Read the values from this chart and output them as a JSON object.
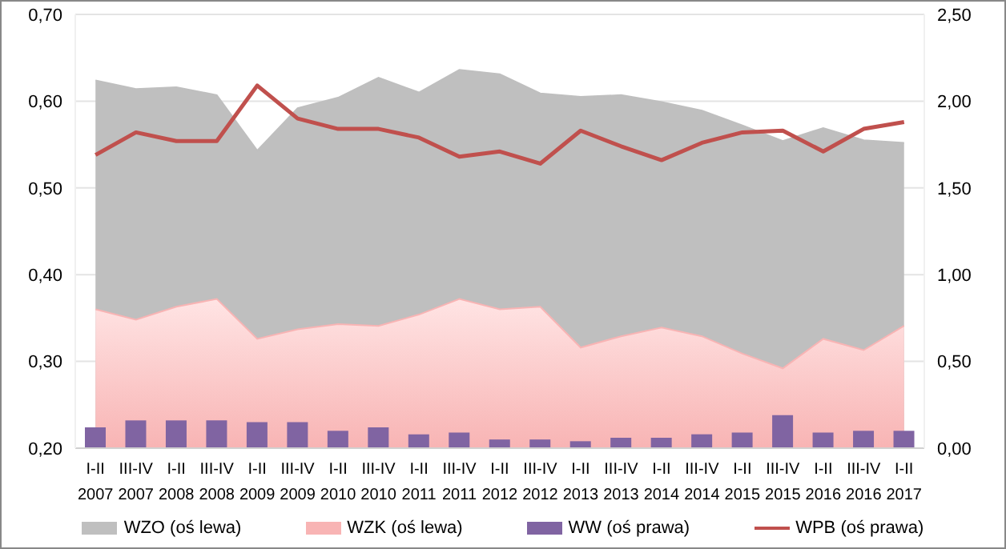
{
  "chart_data": {
    "type": "area",
    "categories": [
      "I-II 2007",
      "III-IV 2007",
      "I-II 2008",
      "III-IV 2008",
      "I-II 2009",
      "III-IV 2009",
      "I-II 2010",
      "III-IV 2010",
      "I-II 2011",
      "III-IV 2011",
      "I-II 2012",
      "III-IV 2012",
      "I-II 2013",
      "III-IV 2013",
      "I-II 2014",
      "III-IV 2014",
      "I-II 2015",
      "III-IV 2015",
      "I-II 2016",
      "III-IV 2016",
      "I-II 2017"
    ],
    "series": [
      {
        "name": "WZO (oś lewa)",
        "color": "#bfbfbf",
        "values": [
          0.624,
          0.614,
          0.616,
          0.607,
          0.543,
          0.592,
          0.604,
          0.627,
          0.61,
          0.636,
          0.631,
          0.609,
          0.605,
          0.607,
          0.599,
          0.589,
          0.572,
          0.554,
          0.569,
          0.555,
          0.552
        ]
      },
      {
        "name": "WZK (oś lewa)",
        "color": "#f8b4b4",
        "values": [
          0.36,
          0.348,
          0.363,
          0.372,
          0.326,
          0.337,
          0.343,
          0.341,
          0.354,
          0.372,
          0.36,
          0.363,
          0.316,
          0.329,
          0.339,
          0.329,
          0.309,
          0.292,
          0.326,
          0.313,
          0.341
        ]
      },
      {
        "name": "WW (oś prawa)",
        "type": "bar",
        "axis": "y2",
        "color": "#8064a2",
        "values": [
          0.12,
          0.16,
          0.16,
          0.16,
          0.15,
          0.15,
          0.1,
          0.12,
          0.08,
          0.09,
          0.05,
          0.05,
          0.04,
          0.06,
          0.06,
          0.08,
          0.09,
          0.19,
          0.09,
          0.1,
          0.1
        ]
      },
      {
        "name": "WPB (oś prawa)",
        "type": "line",
        "axis": "y2",
        "color": "#c0504d",
        "values": [
          1.69,
          1.82,
          1.77,
          1.77,
          2.09,
          1.9,
          1.84,
          1.84,
          1.79,
          1.68,
          1.71,
          1.64,
          1.83,
          1.74,
          1.66,
          1.76,
          1.82,
          1.83,
          1.71,
          1.84,
          1.88
        ]
      }
    ],
    "ylim": [
      0.2,
      0.7
    ],
    "yticks": [
      {
        "value": 0.2,
        "label": "0,20"
      },
      {
        "value": 0.3,
        "label": "0,30"
      },
      {
        "value": 0.4,
        "label": "0,40"
      },
      {
        "value": 0.5,
        "label": "0,50"
      },
      {
        "value": 0.6,
        "label": "0,60"
      },
      {
        "value": 0.7,
        "label": "0,70"
      }
    ],
    "y2lim": [
      0,
      2.5
    ],
    "y2ticks": [
      {
        "value": 0,
        "label": "0,00"
      },
      {
        "value": 0.5,
        "label": "0,50"
      },
      {
        "value": 1,
        "label": "1,00"
      },
      {
        "value": 1.5,
        "label": "1,50"
      },
      {
        "value": 2,
        "label": "2,00"
      },
      {
        "value": 2.5,
        "label": "2,50"
      }
    ],
    "grid": "y",
    "legend": "bottom",
    "marker": "none",
    "line_style": "solid"
  }
}
